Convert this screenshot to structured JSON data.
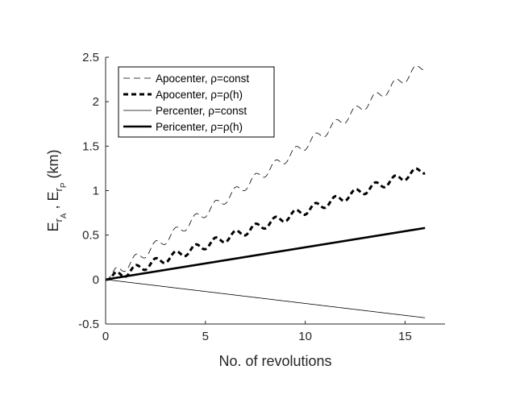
{
  "chart_data": {
    "type": "line",
    "xlabel": "No. of revolutions",
    "ylabel": {
      "main": "E",
      "sub1": "r",
      "sub1sub": "A",
      "sep": " , E",
      "sub2": "r",
      "sub2sub": "P",
      "unit": " (km)"
    },
    "xlim": [
      0,
      17
    ],
    "ylim": [
      -0.5,
      2.5
    ],
    "xticks": [
      0,
      5,
      10,
      15
    ],
    "xtick_labels": [
      "0",
      "5",
      "10",
      "15"
    ],
    "yticks": [
      -0.5,
      0,
      0.5,
      1,
      1.5,
      2,
      2.5
    ],
    "ytick_labels": [
      "-0.5",
      "0",
      "0.5",
      "1",
      "1.5",
      "2",
      "2.5"
    ],
    "grid": false,
    "legend_position": "top-left",
    "series": [
      {
        "name": "Apocenter, ρ=const",
        "style": "thin-dashed",
        "color": "#000000",
        "trend_start": 0.0,
        "trend_end": 2.42,
        "oscillation_amplitude": 0.055,
        "x_start": 0,
        "x_end": 16
      },
      {
        "name": "Apocenter, ρ=ρ(h)",
        "style": "thick-dashed",
        "color": "#000000",
        "trend_start": 0.0,
        "trend_end": 1.24,
        "oscillation_amplitude": 0.045,
        "x_start": 0,
        "x_end": 16
      },
      {
        "name": "Percenter, ρ=const",
        "style": "thin-solid",
        "color": "#000000",
        "trend_start": 0.0,
        "trend_end": -0.43,
        "oscillation_amplitude": 0,
        "x_start": 0,
        "x_end": 16
      },
      {
        "name": "Pericenter, ρ=ρ(h)",
        "style": "thick-solid",
        "color": "#000000",
        "trend_start": 0.0,
        "trend_end": 0.58,
        "oscillation_amplitude": 0,
        "x_start": 0,
        "x_end": 16
      }
    ]
  }
}
